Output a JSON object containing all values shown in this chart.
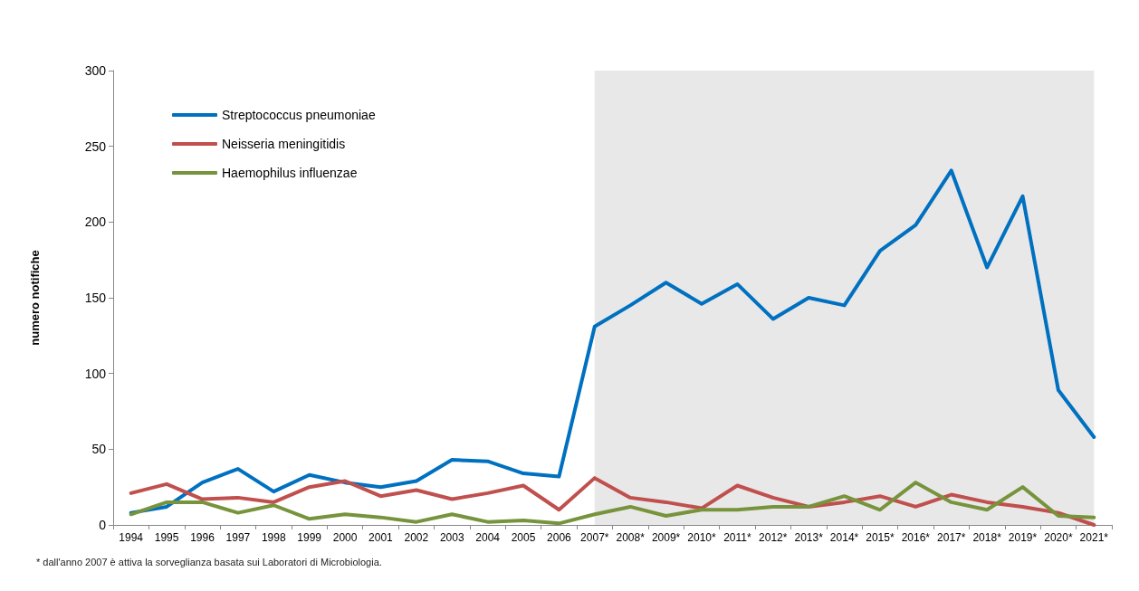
{
  "chart_data": {
    "type": "line",
    "ylabel": "numero notifiche",
    "categories": [
      "1994",
      "1995",
      "1996",
      "1997",
      "1998",
      "1999",
      "2000",
      "2001",
      "2002",
      "2003",
      "2004",
      "2005",
      "2006",
      "2007*",
      "2008*",
      "2009*",
      "2010*",
      "2011*",
      "2012*",
      "2013*",
      "2014*",
      "2015*",
      "2016*",
      "2017*",
      "2018*",
      "2019*",
      "2020*",
      "2021*"
    ],
    "series": [
      {
        "name": "Streptococcus pneumoniae",
        "color": "#0070c0",
        "values": [
          8,
          12,
          28,
          37,
          22,
          33,
          28,
          25,
          29,
          43,
          42,
          34,
          32,
          131,
          145,
          160,
          146,
          159,
          136,
          150,
          145,
          181,
          198,
          234,
          170,
          217,
          89,
          58
        ]
      },
      {
        "name": "Neisseria meningitidis",
        "color": "#c0504d",
        "values": [
          21,
          27,
          17,
          18,
          15,
          25,
          29,
          19,
          23,
          17,
          21,
          26,
          10,
          31,
          18,
          15,
          11,
          26,
          18,
          12,
          15,
          19,
          12,
          20,
          15,
          12,
          8,
          0
        ]
      },
      {
        "name": "Haemophilus influenzae",
        "color": "#77933c",
        "values": [
          7,
          15,
          15,
          8,
          13,
          4,
          7,
          5,
          2,
          7,
          2,
          3,
          1,
          7,
          12,
          6,
          10,
          10,
          12,
          12,
          19,
          10,
          28,
          15,
          10,
          25,
          6,
          5
        ]
      }
    ],
    "ylim": [
      0,
      300
    ],
    "yticks": [
      0,
      50,
      100,
      150,
      200,
      250,
      300
    ],
    "bands": [
      {
        "axis": "x",
        "from": "2007*",
        "to": "2021*",
        "color": "#d9d9d9"
      }
    ],
    "grid": false,
    "legend": "top left",
    "marker": "none",
    "line_style": "solid",
    "annotations": [
      "* dall'anno  2007 è attiva  la sorveglianza  basata  sui Laboratori di Microbiologia."
    ]
  }
}
